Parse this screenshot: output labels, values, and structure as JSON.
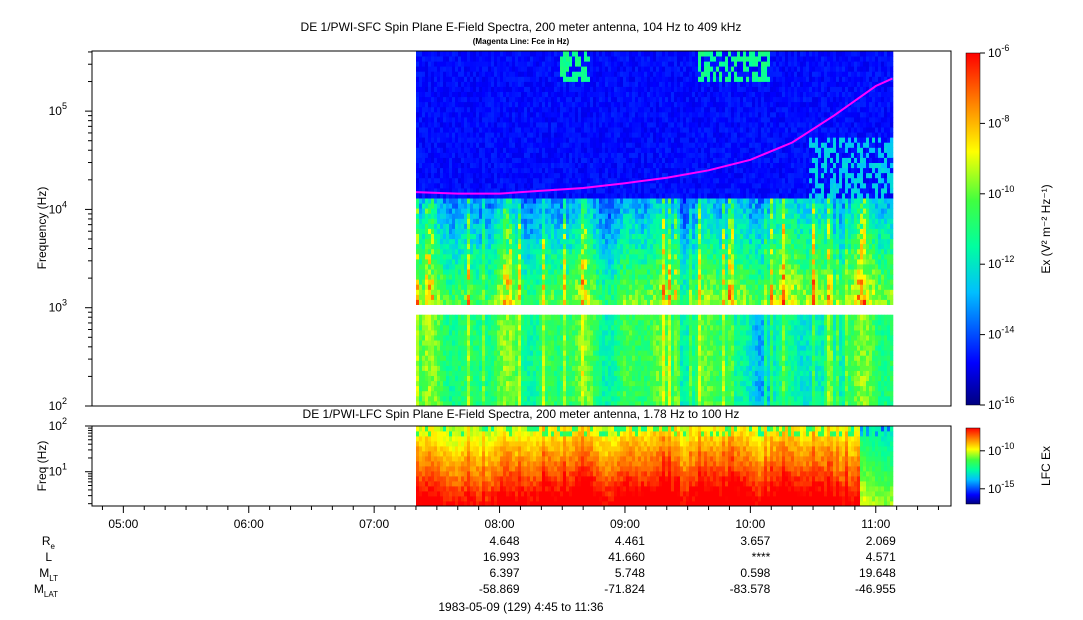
{
  "chart_data": [
    {
      "type": "heatmap",
      "title": "DE 1/PWI-SFC  Spin Plane E-Field Spectra, 200 meter antenna, 104 Hz to 409 kHz",
      "subtitle": "(Magenta Line: Fce in Hz)",
      "ylabel": "Frequency (Hz)",
      "yscale": "log",
      "ylim": [
        100,
        409000
      ],
      "yticks": [
        {
          "v": 100,
          "m": "10",
          "e": "2"
        },
        {
          "v": 1000,
          "m": "10",
          "e": "3"
        },
        {
          "v": 10000,
          "m": "10",
          "e": "4"
        },
        {
          "v": 100000,
          "m": "10",
          "e": "5"
        }
      ],
      "data_start": "07:20",
      "data_end": "11:08",
      "gap_hz": [
        900,
        1050
      ],
      "fce_line": {
        "label": "Fce in Hz",
        "color": "#ff00ff",
        "points": [
          [
            "07:20",
            15000
          ],
          [
            "07:40",
            14500
          ],
          [
            "08:00",
            14500
          ],
          [
            "08:20",
            15500
          ],
          [
            "08:40",
            16500
          ],
          [
            "09:00",
            18500
          ],
          [
            "09:20",
            21000
          ],
          [
            "09:40",
            25000
          ],
          [
            "10:00",
            32000
          ],
          [
            "10:20",
            48000
          ],
          [
            "10:40",
            90000
          ],
          [
            "11:00",
            180000
          ],
          [
            "11:08",
            215000
          ]
        ]
      },
      "colorbar": {
        "label": "Ex (V² m⁻² Hz⁻¹)",
        "range": [
          1e-16,
          1e-06
        ],
        "ticks": [
          {
            "m": "10",
            "e": "-6"
          },
          {
            "m": "10",
            "e": "-8"
          },
          {
            "m": "10",
            "e": "-10"
          },
          {
            "m": "10",
            "e": "-12"
          },
          {
            "m": "10",
            "e": "-14"
          },
          {
            "m": "10",
            "e": "-16"
          }
        ]
      }
    },
    {
      "type": "heatmap",
      "title": "DE 1/PWI-LFC  Spin Plane E-Field Spectra, 200 meter antenna, 1.78 Hz to 100 Hz",
      "ylabel": "Freq (Hz)",
      "yscale": "log",
      "ylim": [
        1.78,
        100
      ],
      "yticks": [
        {
          "v": 10,
          "m": "10",
          "e": "1"
        },
        {
          "v": 100,
          "m": "10",
          "e": "2"
        }
      ],
      "data_start": "07:20",
      "data_end": "11:08",
      "colorbar": {
        "label": "LFC Ex",
        "range": [
          1e-17,
          1e-07
        ],
        "ticks": [
          {
            "m": "10",
            "e": "-10"
          },
          {
            "m": "10",
            "e": "-15"
          }
        ]
      }
    }
  ],
  "x_axis": {
    "start": "04:45",
    "end": "11:36",
    "ticks": [
      "05:00",
      "06:00",
      "07:00",
      "08:00",
      "09:00",
      "10:00",
      "11:00"
    ]
  },
  "ephemeris": {
    "rows": [
      {
        "label": "R",
        "sub": "e",
        "values": [
          "4.648",
          "4.461",
          "3.657",
          "2.069"
        ]
      },
      {
        "label": "L",
        "sub": "",
        "values": [
          "16.993",
          "41.660",
          "****",
          "4.571"
        ]
      },
      {
        "label": "M",
        "sub": "LT",
        "values": [
          "6.397",
          "5.748",
          "0.598",
          "19.648"
        ]
      },
      {
        "label": "M",
        "sub": "LAT",
        "values": [
          "-58.869",
          "-71.824",
          "-83.578",
          "-46.955"
        ]
      }
    ],
    "columns": [
      "08:00",
      "09:00",
      "10:00",
      "11:00"
    ]
  },
  "footer": "1983-05-09 (129) 4:45 to 11:36"
}
